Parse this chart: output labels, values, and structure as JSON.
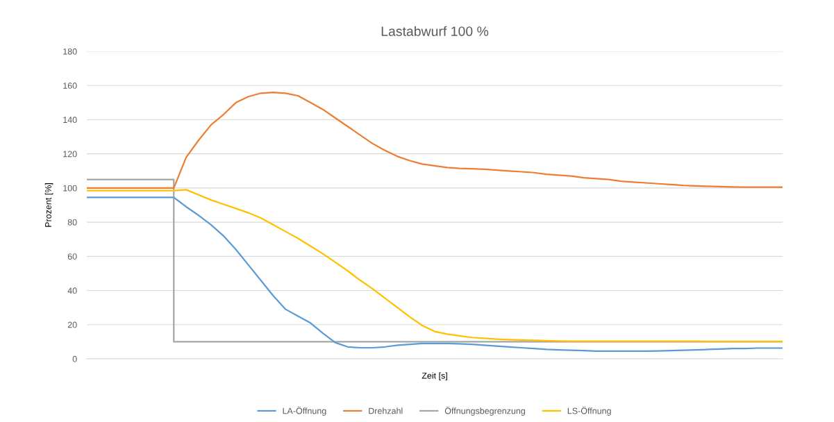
{
  "chart_data": {
    "type": "line",
    "title": "Lastabwurf 100 %",
    "xlabel": "Zeit [s]",
    "ylabel": "Prozent [%]",
    "categories": [
      null,
      null,
      null,
      null,
      null,
      null,
      null,
      null,
      null,
      null,
      null,
      null,
      null,
      null,
      null,
      null,
      null,
      null,
      null,
      null,
      null,
      null,
      null,
      null,
      null,
      null,
      null,
      null,
      null,
      null,
      null,
      null,
      null,
      null,
      null,
      null,
      null,
      null,
      null,
      null,
      null,
      null,
      null,
      null,
      null,
      null,
      null,
      null,
      null,
      null,
      null,
      null,
      null,
      null,
      null,
      null,
      null
    ],
    "series": [
      {
        "name": "LA-Öffnung",
        "color": "#5b9bd5",
        "values": [
          94.5,
          94.5,
          94.5,
          94.5,
          94.5,
          94.5,
          94.5,
          94.5,
          89,
          84,
          78.5,
          72,
          64,
          55,
          46,
          37,
          29,
          25,
          21,
          15,
          9.5,
          7,
          6.5,
          6.5,
          7,
          8,
          8.5,
          9,
          9,
          9,
          8.8,
          8.5,
          8,
          7.5,
          7,
          6.5,
          6,
          5.5,
          5.2,
          5,
          4.8,
          4.5,
          4.5,
          4.5,
          4.5,
          4.5,
          4.6,
          4.8,
          5,
          5.2,
          5.5,
          5.7,
          6,
          6,
          6.3,
          6.3,
          6.3
        ]
      },
      {
        "name": "Drehzahl",
        "color": "#ed7d31",
        "values": [
          100,
          100,
          100,
          100,
          100,
          100,
          100,
          100,
          118,
          128,
          137,
          143,
          150,
          153.5,
          155.5,
          156,
          155.5,
          154,
          150,
          146,
          141,
          136,
          131,
          126,
          122,
          118.5,
          116,
          114,
          113,
          112,
          111.5,
          111.3,
          111,
          110.5,
          110,
          109.5,
          109,
          108,
          107.5,
          107,
          106,
          105.5,
          105,
          104,
          103.5,
          103,
          102.5,
          102,
          101.5,
          101.2,
          101,
          100.8,
          100.6,
          100.5,
          100.5,
          100.5,
          100.5
        ]
      },
      {
        "name": "Öffnungsbegrenzung",
        "color": "#a5a5a5",
        "type": "step",
        "values": [
          105,
          105,
          105,
          105,
          105,
          105,
          105,
          10,
          10,
          10,
          10,
          10,
          10,
          10,
          10,
          10,
          10,
          10,
          10,
          10,
          10,
          10,
          10,
          10,
          10,
          10,
          10,
          10,
          10,
          10,
          10,
          10,
          10,
          10,
          10,
          10,
          10,
          10,
          10,
          10,
          10,
          10,
          10,
          10,
          10,
          10,
          10,
          10,
          10,
          10,
          10,
          10,
          10,
          10,
          10,
          10,
          10
        ]
      },
      {
        "name": "LS-Öffnung",
        "color": "#ffc000",
        "values": [
          98.5,
          98.5,
          98.5,
          98.5,
          98.5,
          98.5,
          98.5,
          98.5,
          99,
          96,
          93,
          90.5,
          88,
          85.5,
          82.5,
          78.5,
          74.5,
          70.5,
          66,
          61.5,
          56.5,
          51.5,
          46,
          41,
          35.5,
          30,
          24.5,
          19.5,
          16,
          14.5,
          13.5,
          12.5,
          12,
          11.5,
          11.2,
          11,
          10.8,
          10.6,
          10.4,
          10.3,
          10.3,
          10.3,
          10.3,
          10.3,
          10.3,
          10.3,
          10.3,
          10.3,
          10.3,
          10.3,
          10.2,
          10.2,
          10.2,
          10.2,
          10.2,
          10.2,
          10.2
        ]
      }
    ],
    "ylim": [
      0,
      180
    ],
    "yticks": [
      0,
      20,
      40,
      60,
      80,
      100,
      120,
      140,
      160,
      180
    ],
    "grid": "y",
    "legend": "bottom",
    "tick_labels": "y"
  }
}
